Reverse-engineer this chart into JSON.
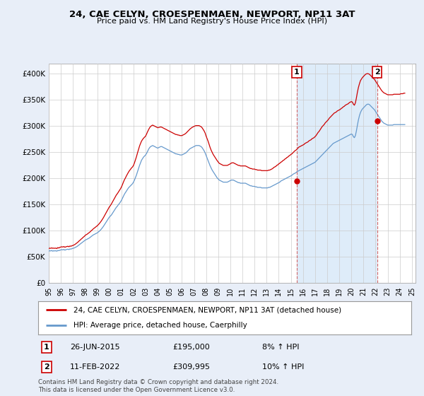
{
  "title": "24, CAE CELYN, CROESPENMAEN, NEWPORT, NP11 3AT",
  "subtitle": "Price paid vs. HM Land Registry's House Price Index (HPI)",
  "background_color": "#e8eef8",
  "plot_bg_color": "#ffffff",
  "ylim": [
    0,
    420000
  ],
  "yticks": [
    0,
    50000,
    100000,
    150000,
    200000,
    250000,
    300000,
    350000,
    400000
  ],
  "ytick_labels": [
    "£0",
    "£50K",
    "£100K",
    "£150K",
    "£200K",
    "£250K",
    "£300K",
    "£350K",
    "£400K"
  ],
  "red_line_color": "#cc0000",
  "blue_line_color": "#6699cc",
  "shade_color": "#d0e4f7",
  "vline_color": "#cc4444",
  "legend_label_red": "24, CAE CELYN, CROESPENMAEN, NEWPORT, NP11 3AT (detached house)",
  "legend_label_blue": "HPI: Average price, detached house, Caerphilly",
  "note1_label": "1",
  "note1_date": "26-JUN-2015",
  "note1_price": "£195,000",
  "note1_hpi": "8% ↑ HPI",
  "note2_label": "2",
  "note2_date": "11-FEB-2022",
  "note2_price": "£309,995",
  "note2_hpi": "10% ↑ HPI",
  "footer": "Contains HM Land Registry data © Crown copyright and database right 2024.\nThis data is licensed under the Open Government Licence v3.0.",
  "sale_points": [
    {
      "date": 2015.49,
      "value": 195000,
      "label": "1"
    },
    {
      "date": 2022.12,
      "value": 309995,
      "label": "2"
    }
  ],
  "hpi_data": {
    "dates": [
      1995.0,
      1995.083,
      1995.167,
      1995.25,
      1995.333,
      1995.417,
      1995.5,
      1995.583,
      1995.667,
      1995.75,
      1995.833,
      1995.917,
      1996.0,
      1996.083,
      1996.167,
      1996.25,
      1996.333,
      1996.417,
      1996.5,
      1996.583,
      1996.667,
      1996.75,
      1996.833,
      1996.917,
      1997.0,
      1997.083,
      1997.167,
      1997.25,
      1997.333,
      1997.417,
      1997.5,
      1997.583,
      1997.667,
      1997.75,
      1997.833,
      1997.917,
      1998.0,
      1998.083,
      1998.167,
      1998.25,
      1998.333,
      1998.417,
      1998.5,
      1998.583,
      1998.667,
      1998.75,
      1998.833,
      1998.917,
      1999.0,
      1999.083,
      1999.167,
      1999.25,
      1999.333,
      1999.417,
      1999.5,
      1999.583,
      1999.667,
      1999.75,
      1999.833,
      1999.917,
      2000.0,
      2000.083,
      2000.167,
      2000.25,
      2000.333,
      2000.417,
      2000.5,
      2000.583,
      2000.667,
      2000.75,
      2000.833,
      2000.917,
      2001.0,
      2001.083,
      2001.167,
      2001.25,
      2001.333,
      2001.417,
      2001.5,
      2001.583,
      2001.667,
      2001.75,
      2001.833,
      2001.917,
      2002.0,
      2002.083,
      2002.167,
      2002.25,
      2002.333,
      2002.417,
      2002.5,
      2002.583,
      2002.667,
      2002.75,
      2002.833,
      2002.917,
      2003.0,
      2003.083,
      2003.167,
      2003.25,
      2003.333,
      2003.417,
      2003.5,
      2003.583,
      2003.667,
      2003.75,
      2003.833,
      2003.917,
      2004.0,
      2004.083,
      2004.167,
      2004.25,
      2004.333,
      2004.417,
      2004.5,
      2004.583,
      2004.667,
      2004.75,
      2004.833,
      2004.917,
      2005.0,
      2005.083,
      2005.167,
      2005.25,
      2005.333,
      2005.417,
      2005.5,
      2005.583,
      2005.667,
      2005.75,
      2005.833,
      2005.917,
      2006.0,
      2006.083,
      2006.167,
      2006.25,
      2006.333,
      2006.417,
      2006.5,
      2006.583,
      2006.667,
      2006.75,
      2006.833,
      2006.917,
      2007.0,
      2007.083,
      2007.167,
      2007.25,
      2007.333,
      2007.417,
      2007.5,
      2007.583,
      2007.667,
      2007.75,
      2007.833,
      2007.917,
      2008.0,
      2008.083,
      2008.167,
      2008.25,
      2008.333,
      2008.417,
      2008.5,
      2008.583,
      2008.667,
      2008.75,
      2008.833,
      2008.917,
      2009.0,
      2009.083,
      2009.167,
      2009.25,
      2009.333,
      2009.417,
      2009.5,
      2009.583,
      2009.667,
      2009.75,
      2009.833,
      2009.917,
      2010.0,
      2010.083,
      2010.167,
      2010.25,
      2010.333,
      2010.417,
      2010.5,
      2010.583,
      2010.667,
      2010.75,
      2010.833,
      2010.917,
      2011.0,
      2011.083,
      2011.167,
      2011.25,
      2011.333,
      2011.417,
      2011.5,
      2011.583,
      2011.667,
      2011.75,
      2011.833,
      2011.917,
      2012.0,
      2012.083,
      2012.167,
      2012.25,
      2012.333,
      2012.417,
      2012.5,
      2012.583,
      2012.667,
      2012.75,
      2012.833,
      2012.917,
      2013.0,
      2013.083,
      2013.167,
      2013.25,
      2013.333,
      2013.417,
      2013.5,
      2013.583,
      2013.667,
      2013.75,
      2013.833,
      2013.917,
      2014.0,
      2014.083,
      2014.167,
      2014.25,
      2014.333,
      2014.417,
      2014.5,
      2014.583,
      2014.667,
      2014.75,
      2014.833,
      2014.917,
      2015.0,
      2015.083,
      2015.167,
      2015.25,
      2015.333,
      2015.417,
      2015.5,
      2015.583,
      2015.667,
      2015.75,
      2015.833,
      2015.917,
      2016.0,
      2016.083,
      2016.167,
      2016.25,
      2016.333,
      2016.417,
      2016.5,
      2016.583,
      2016.667,
      2016.75,
      2016.833,
      2016.917,
      2017.0,
      2017.083,
      2017.167,
      2017.25,
      2017.333,
      2017.417,
      2017.5,
      2017.583,
      2017.667,
      2017.75,
      2017.833,
      2017.917,
      2018.0,
      2018.083,
      2018.167,
      2018.25,
      2018.333,
      2018.417,
      2018.5,
      2018.583,
      2018.667,
      2018.75,
      2018.833,
      2018.917,
      2019.0,
      2019.083,
      2019.167,
      2019.25,
      2019.333,
      2019.417,
      2019.5,
      2019.583,
      2019.667,
      2019.75,
      2019.833,
      2019.917,
      2020.0,
      2020.083,
      2020.167,
      2020.25,
      2020.333,
      2020.417,
      2020.5,
      2020.583,
      2020.667,
      2020.75,
      2020.833,
      2020.917,
      2021.0,
      2021.083,
      2021.167,
      2021.25,
      2021.333,
      2021.417,
      2021.5,
      2021.583,
      2021.667,
      2021.75,
      2021.833,
      2021.917,
      2022.0,
      2022.083,
      2022.167,
      2022.25,
      2022.333,
      2022.417,
      2022.5,
      2022.583,
      2022.667,
      2022.75,
      2022.833,
      2022.917,
      2023.0,
      2023.083,
      2023.167,
      2023.25,
      2023.333,
      2023.417,
      2023.5,
      2023.583,
      2023.667,
      2023.75,
      2023.833,
      2023.917,
      2024.0,
      2024.083,
      2024.167,
      2024.25,
      2024.333,
      2024.417
    ],
    "hpi_values": [
      61000,
      62000,
      61500,
      62500,
      61000,
      62000,
      61500,
      62000,
      61000,
      62500,
      62000,
      63000,
      63500,
      64000,
      63500,
      64500,
      63000,
      64000,
      64500,
      65000,
      64000,
      65500,
      65000,
      66000,
      66500,
      67000,
      68000,
      69000,
      70000,
      71500,
      73000,
      74500,
      76000,
      77500,
      79000,
      80500,
      82000,
      83000,
      84000,
      85000,
      86000,
      87500,
      89000,
      90500,
      92000,
      93000,
      94000,
      95000,
      96000,
      97500,
      99000,
      101000,
      103000,
      105500,
      108000,
      111000,
      114000,
      117000,
      120000,
      123000,
      126000,
      128000,
      130000,
      133000,
      136000,
      139000,
      142000,
      145000,
      147000,
      150000,
      152000,
      155000,
      158000,
      162000,
      166000,
      170000,
      173000,
      176000,
      179000,
      182000,
      184000,
      186000,
      188000,
      190000,
      193000,
      197000,
      202000,
      207000,
      213000,
      219000,
      225000,
      230000,
      235000,
      238000,
      241000,
      243000,
      245000,
      248000,
      252000,
      256000,
      259000,
      261000,
      262000,
      263000,
      262000,
      261000,
      260000,
      259000,
      258000,
      259000,
      260000,
      261000,
      261000,
      260000,
      259000,
      258000,
      257000,
      256000,
      255000,
      254000,
      253000,
      252000,
      251000,
      250000,
      249000,
      248000,
      247000,
      247000,
      246000,
      246000,
      245000,
      245000,
      245000,
      246000,
      247000,
      248000,
      249000,
      251000,
      253000,
      255000,
      257000,
      258000,
      259000,
      260000,
      261000,
      262000,
      263000,
      263000,
      263000,
      263000,
      262000,
      261000,
      259000,
      256000,
      253000,
      249000,
      244000,
      239000,
      234000,
      229000,
      224000,
      220000,
      216000,
      213000,
      210000,
      207000,
      204000,
      201000,
      199000,
      197000,
      196000,
      195000,
      194000,
      193000,
      193000,
      193000,
      193000,
      193000,
      194000,
      195000,
      196000,
      197000,
      197000,
      197000,
      196000,
      195000,
      194000,
      193000,
      192000,
      192000,
      191000,
      191000,
      191000,
      191000,
      191000,
      191000,
      190000,
      189000,
      188000,
      187000,
      186000,
      186000,
      185000,
      185000,
      185000,
      184000,
      184000,
      183000,
      183000,
      183000,
      183000,
      182000,
      182000,
      182000,
      182000,
      182000,
      182000,
      182000,
      183000,
      183000,
      184000,
      185000,
      186000,
      187000,
      188000,
      189000,
      190000,
      191000,
      192000,
      193000,
      195000,
      196000,
      197000,
      198000,
      199000,
      200000,
      201000,
      202000,
      203000,
      204000,
      205000,
      206000,
      208000,
      209000,
      210000,
      211000,
      213000,
      214000,
      215000,
      216000,
      217000,
      218000,
      219000,
      220000,
      221000,
      222000,
      223000,
      224000,
      225000,
      226000,
      227000,
      228000,
      229000,
      230000,
      231000,
      233000,
      235000,
      237000,
      239000,
      241000,
      243000,
      245000,
      247000,
      249000,
      251000,
      253000,
      255000,
      257000,
      259000,
      261000,
      263000,
      265000,
      267000,
      268000,
      269000,
      270000,
      271000,
      272000,
      273000,
      274000,
      275000,
      276000,
      277000,
      278000,
      279000,
      280000,
      281000,
      282000,
      283000,
      284000,
      285000,
      284000,
      280000,
      278000,
      282000,
      291000,
      302000,
      312000,
      320000,
      326000,
      330000,
      333000,
      335000,
      337000,
      339000,
      341000,
      342000,
      342000,
      341000,
      339000,
      337000,
      335000,
      333000,
      331000,
      328000,
      325000,
      322000,
      319000,
      316000,
      313000,
      310000,
      308000,
      306000,
      305000,
      304000,
      303000,
      302000,
      302000,
      302000,
      302000,
      302000,
      302000,
      303000,
      303000,
      303000,
      303000,
      303000,
      303000,
      303000,
      303000,
      303000,
      303000,
      303000,
      303000
    ],
    "red_values": [
      66000,
      67000,
      66500,
      67500,
      66500,
      67000,
      66500,
      67000,
      66000,
      68000,
      67000,
      68500,
      69000,
      69500,
      69000,
      70000,
      68500,
      69500,
      70000,
      70500,
      69500,
      71000,
      70500,
      71500,
      72000,
      73000,
      74000,
      75500,
      77000,
      78500,
      80500,
      82000,
      84000,
      85500,
      87500,
      89000,
      91000,
      92500,
      93500,
      95000,
      96500,
      98000,
      100000,
      101500,
      103500,
      105000,
      106500,
      108000,
      109500,
      111500,
      113500,
      116000,
      118500,
      121500,
      124500,
      128000,
      131500,
      135000,
      138500,
      142000,
      145500,
      148000,
      151000,
      154500,
      158000,
      161500,
      165000,
      168500,
      171000,
      174000,
      177000,
      180000,
      183500,
      188000,
      193000,
      197500,
      201000,
      205000,
      208500,
      212000,
      215000,
      217500,
      220000,
      222000,
      225000,
      230000,
      236000,
      242000,
      249000,
      255500,
      262000,
      267000,
      271500,
      274500,
      277000,
      279000,
      281000,
      285000,
      289500,
      293500,
      297000,
      299500,
      301000,
      302000,
      301000,
      300000,
      299000,
      298000,
      297000,
      297500,
      298000,
      298500,
      298000,
      297000,
      296000,
      295000,
      294000,
      293000,
      292000,
      291000,
      290000,
      289000,
      288000,
      287000,
      286000,
      285000,
      284000,
      284000,
      283000,
      283000,
      282000,
      282000,
      282000,
      283000,
      284000,
      285000,
      286500,
      288500,
      290500,
      292500,
      294500,
      296000,
      297500,
      298500,
      299500,
      300500,
      301000,
      301000,
      301000,
      301000,
      300000,
      299000,
      297000,
      294000,
      291000,
      287000,
      281000,
      276000,
      271000,
      265000,
      259000,
      254000,
      250000,
      246000,
      243000,
      240000,
      237000,
      234000,
      231500,
      229000,
      228000,
      227000,
      226000,
      225000,
      225000,
      225000,
      225000,
      225000,
      226000,
      227000,
      228000,
      229500,
      230000,
      230000,
      229000,
      228000,
      227000,
      226000,
      225000,
      225000,
      224000,
      224000,
      224000,
      224000,
      224000,
      224000,
      223000,
      222000,
      221000,
      220000,
      219000,
      219000,
      218000,
      218000,
      218000,
      217000,
      217000,
      216000,
      216000,
      216000,
      216000,
      215000,
      215000,
      215000,
      215000,
      215000,
      215000,
      215000,
      216000,
      216000,
      217000,
      218000,
      219000,
      221000,
      222000,
      223000,
      225000,
      226000,
      228000,
      229000,
      231000,
      232000,
      234000,
      235000,
      237000,
      238000,
      240000,
      241000,
      243000,
      244000,
      246000,
      247000,
      249000,
      251000,
      253000,
      254000,
      256000,
      258000,
      260000,
      261000,
      262000,
      263000,
      264000,
      265000,
      267000,
      268000,
      269000,
      270000,
      272000,
      273000,
      274000,
      276000,
      277000,
      278000,
      280000,
      282000,
      285000,
      288000,
      290000,
      293000,
      296000,
      299000,
      301000,
      303000,
      306000,
      308000,
      310000,
      312000,
      315000,
      317000,
      319000,
      321000,
      323000,
      325000,
      326000,
      327000,
      329000,
      330000,
      331000,
      332000,
      334000,
      335000,
      337000,
      338000,
      340000,
      341000,
      342000,
      343000,
      345000,
      346000,
      347000,
      346000,
      342000,
      340000,
      344500,
      354000,
      365000,
      374000,
      381000,
      387000,
      390000,
      393000,
      395000,
      397000,
      399000,
      400000,
      400500,
      400000,
      399000,
      397000,
      395000,
      393000,
      391000,
      389000,
      386000,
      383000,
      380000,
      377000,
      374000,
      371000,
      368000,
      366000,
      364000,
      363000,
      362000,
      361000,
      360000,
      360000,
      360000,
      360000,
      360000,
      360000,
      361000,
      361000,
      361000,
      361000,
      361000,
      361000,
      361000,
      362000,
      362000,
      362000,
      363000,
      363000
    ]
  },
  "xtick_years": [
    1995,
    1996,
    1997,
    1998,
    1999,
    2000,
    2001,
    2002,
    2003,
    2004,
    2005,
    2006,
    2007,
    2008,
    2009,
    2010,
    2011,
    2012,
    2013,
    2014,
    2015,
    2016,
    2017,
    2018,
    2019,
    2020,
    2021,
    2022,
    2023,
    2024,
    2025
  ],
  "xtick_labels": [
    "95",
    "96",
    "97",
    "98",
    "99",
    "00",
    "01",
    "02",
    "03",
    "04",
    "05",
    "06",
    "07",
    "08",
    "09",
    "10",
    "11",
    "12",
    "13",
    "14",
    "15",
    "16",
    "17",
    "18",
    "19",
    "20",
    "21",
    "22",
    "23",
    "24",
    "25"
  ]
}
